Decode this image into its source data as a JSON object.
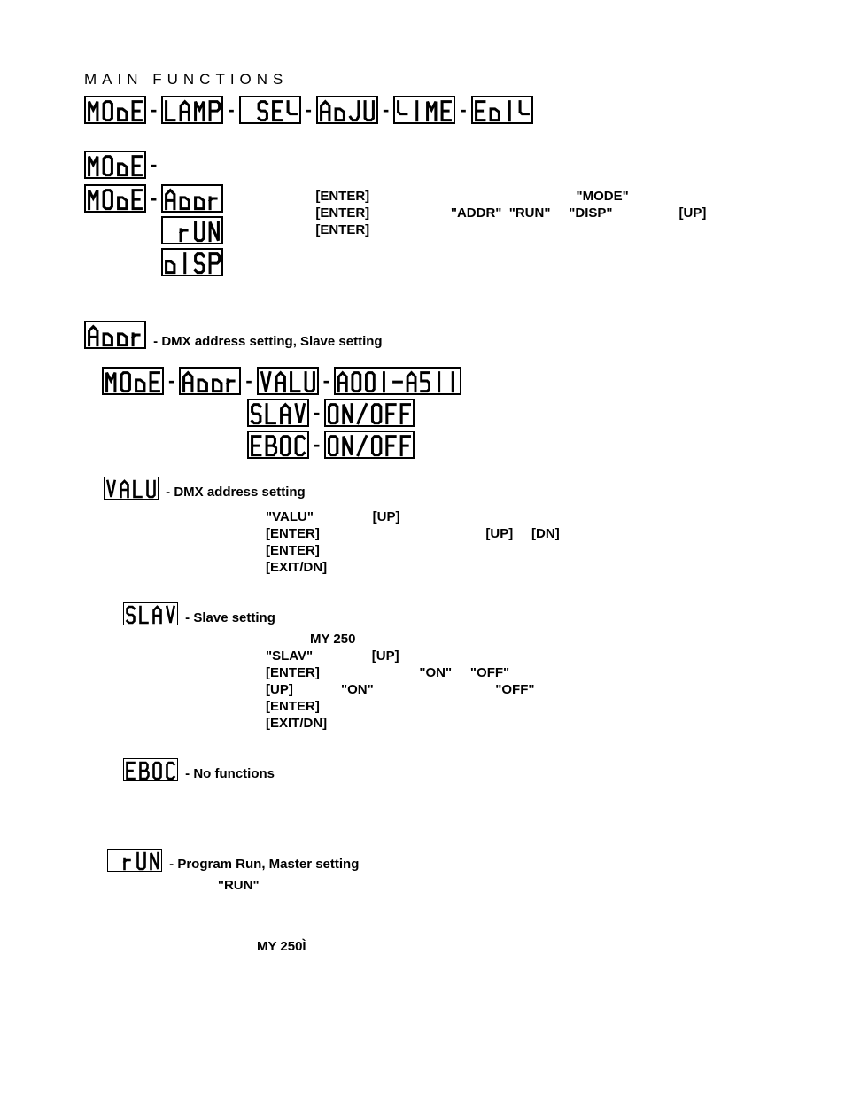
{
  "title": "Main functions",
  "mainRow": [
    "MODE",
    "LAMP",
    "SET",
    "ADJU",
    "TIME",
    "EDIT"
  ],
  "modeStandalone": "MODE",
  "modeTree": {
    "root": "MODE",
    "children": [
      "ADDR",
      "RUN",
      "DISP"
    ]
  },
  "modeRightText1": "[ENTER]                                                        \"MODE\"",
  "modeRightText2": "[ENTER]                      \"ADDR\"  \"RUN\"     \"DISP\"                  [UP]",
  "modeRightText3": "[ENTER]",
  "addrHead": {
    "seg": "ADDR",
    "text": "- DMX address setting, Slave setting"
  },
  "addrRow1": [
    "MODE",
    "ADDR",
    "VALU",
    "A001-A511"
  ],
  "addrRow2": [
    "SLAV",
    "ON/OFF"
  ],
  "addrRow3": [
    "EBOC",
    "ON/OFF"
  ],
  "valuHead": {
    "seg": "VALU",
    "text": "- DMX address setting"
  },
  "valuPara": "\"VALU\"                [UP]\n[ENTER]                                             [UP]     [DN]\n[ENTER]\n[EXIT/DN]",
  "slavHead": {
    "seg": "SLAV",
    "text": "- Slave setting"
  },
  "slavPara": "            MY 250\n\"SLAV\"                [UP]\n[ENTER]                           \"ON\"     \"OFF\"\n[UP]             \"ON\"                                 \"OFF\"\n[ENTER]\n[EXIT/DN]",
  "ebocHead": {
    "seg": "EBOC",
    "text": "- No functions"
  },
  "runHead": {
    "seg": "RUN",
    "text": "- Program Run, Master setting"
  },
  "runSub": "     \"RUN\"",
  "footer": "MY 250Ì",
  "colors": {
    "bg": "#ffffff",
    "fg": "#000000",
    "segStroke": "#000000",
    "segFill": "#ffffff"
  }
}
